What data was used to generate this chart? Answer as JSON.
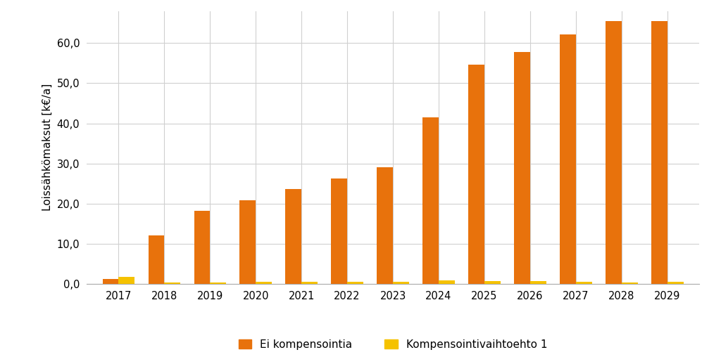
{
  "years": [
    2017,
    2018,
    2019,
    2020,
    2021,
    2022,
    2023,
    2024,
    2025,
    2026,
    2027,
    2028,
    2029
  ],
  "ei_kompensointia": [
    1.3,
    12.0,
    18.2,
    20.8,
    23.6,
    26.2,
    29.0,
    41.5,
    54.7,
    57.8,
    62.2,
    65.5,
    65.5
  ],
  "kompensointivaihtoehto1": [
    1.7,
    0.4,
    0.4,
    0.45,
    0.45,
    0.45,
    0.45,
    0.9,
    0.65,
    0.65,
    0.55,
    0.4,
    0.5
  ],
  "bar_color_orange": "#E8720C",
  "bar_color_yellow": "#F5C200",
  "ylabel": "Loissähkömaksut [k€/a]",
  "ylim": [
    0,
    68
  ],
  "yticks": [
    0.0,
    10.0,
    20.0,
    30.0,
    40.0,
    50.0,
    60.0
  ],
  "legend_orange": "Ei kompensointia",
  "legend_yellow": "Kompensointivaihtoehto 1",
  "background_color": "#ffffff",
  "grid_color": "#d0d0d0",
  "bar_width": 0.35
}
